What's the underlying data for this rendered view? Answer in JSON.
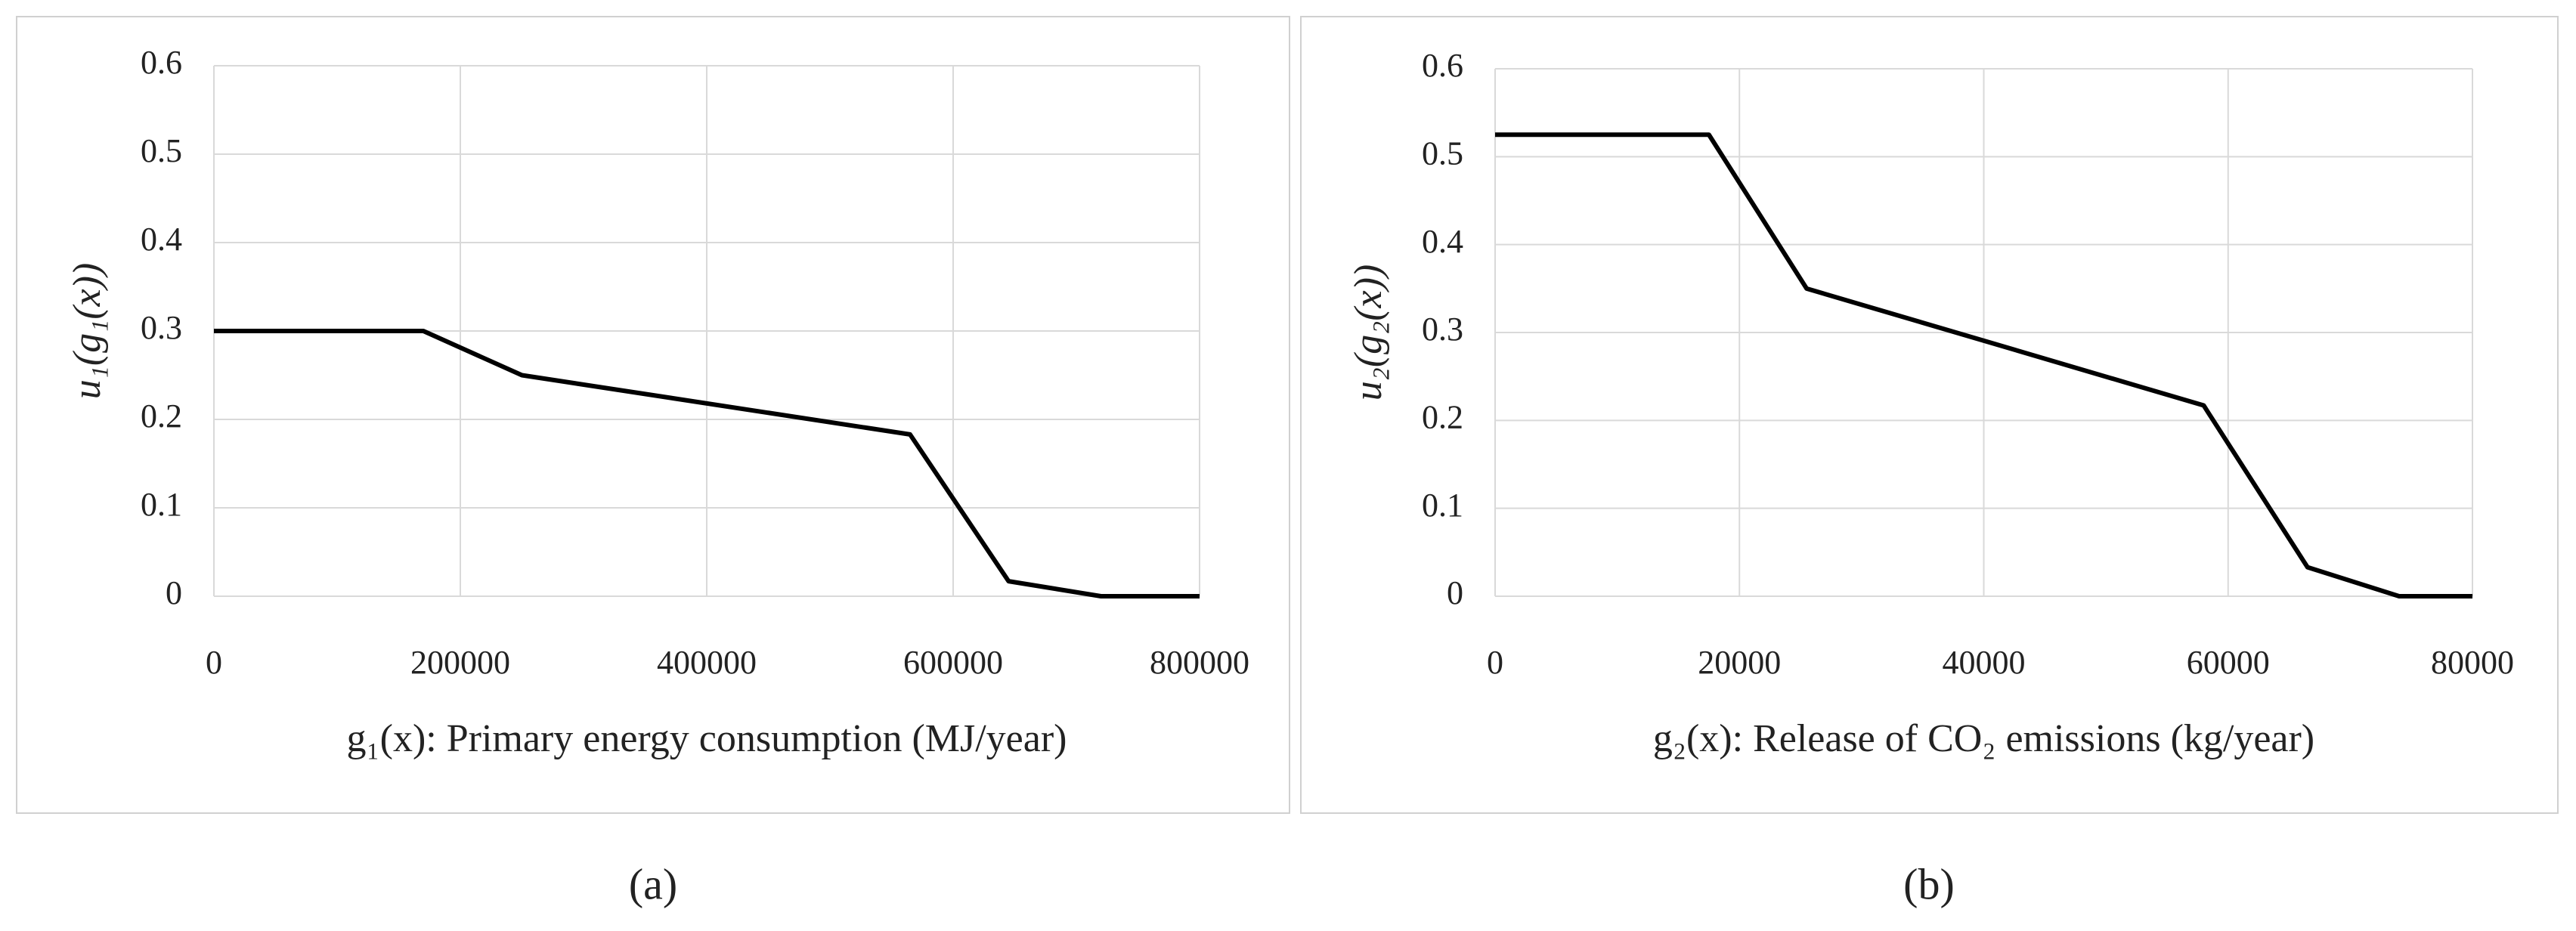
{
  "chart_data": [
    {
      "type": "line",
      "panel_label": "(a)",
      "x_label": "g₁(x): Primary energy consumption (MJ/year)",
      "y_label": "u₁(g₁(x))",
      "x": [
        0,
        170000,
        250000,
        565000,
        645000,
        720000,
        800000
      ],
      "series": [
        {
          "color": "#000000",
          "values": [
            0.3,
            0.3,
            0.25,
            0.183,
            0.017,
            0,
            0
          ]
        }
      ],
      "xlim": [
        0,
        800000
      ],
      "xticks": [
        0,
        200000,
        400000,
        600000,
        800000
      ],
      "ylim": [
        0,
        0.6
      ],
      "yticks": [
        0,
        0.1,
        0.2,
        0.3,
        0.4,
        0.5,
        0.6
      ],
      "grid": true
    },
    {
      "type": "line",
      "panel_label": "(b)",
      "x_label": "g₂(x): Release of CO₂ emissions (kg/year)",
      "y_label": "u₂(g₂(x))",
      "x": [
        0,
        17500,
        25500,
        58000,
        66500,
        74000,
        80000
      ],
      "series": [
        {
          "color": "#000000",
          "values": [
            0.525,
            0.525,
            0.35,
            0.217,
            0.033,
            0,
            0
          ]
        }
      ],
      "xlim": [
        0,
        80000
      ],
      "xticks": [
        0,
        20000,
        40000,
        60000,
        80000
      ],
      "ylim": [
        0,
        0.6
      ],
      "yticks": [
        0,
        0.1,
        0.2,
        0.3,
        0.4,
        0.5,
        0.6
      ],
      "grid": true
    }
  ]
}
